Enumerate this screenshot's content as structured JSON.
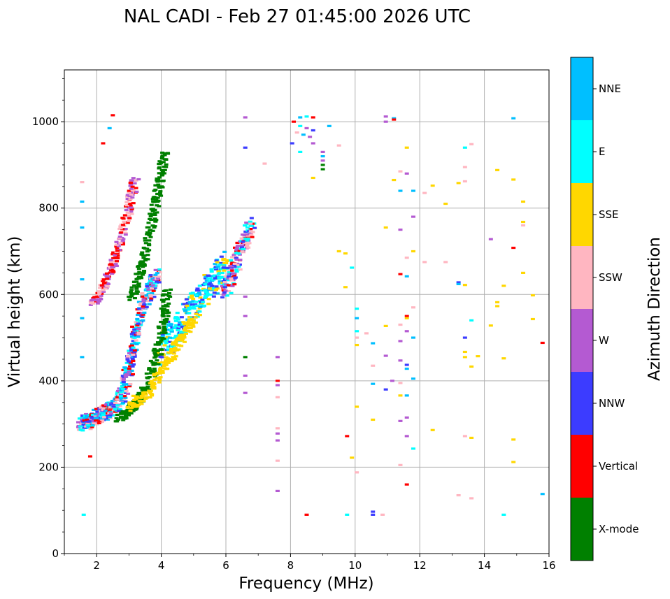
{
  "chart_data": {
    "type": "scatter",
    "title": "NAL CADI - Feb 27 01:45:00 2026 UTC",
    "xlabel": "Frequency (MHz)",
    "ylabel": "Virtual height (km)",
    "xlim": [
      1,
      16
    ],
    "ylim": [
      0,
      1120
    ],
    "xticks": [
      2,
      4,
      6,
      8,
      10,
      12,
      14,
      16
    ],
    "yticks": [
      0,
      200,
      400,
      600,
      800,
      1000
    ],
    "grid": true,
    "colorbar": {
      "label": "Azimuth Direction",
      "categories": [
        {
          "name": "X-mode",
          "color": "#008000"
        },
        {
          "name": "Vertical",
          "color": "#ff0000"
        },
        {
          "name": "NNW",
          "color": "#3c3cff"
        },
        {
          "name": "W",
          "color": "#b45ad2"
        },
        {
          "name": "SSW",
          "color": "#ffb6c1"
        },
        {
          "name": "SSE",
          "color": "#ffd700"
        },
        {
          "name": "E",
          "color": "#00ffff"
        },
        {
          "name": "NNE",
          "color": "#00bfff"
        }
      ]
    },
    "traces": [
      {
        "name": "ordinary trace (mixed azimuth)",
        "mix": [
          "E",
          "NNE",
          "NNW",
          "W",
          "Vertical",
          "SSW"
        ],
        "points": [
          [
            1.5,
            300
          ],
          [
            1.7,
            305
          ],
          [
            1.9,
            315
          ],
          [
            2.1,
            320
          ],
          [
            2.3,
            330
          ],
          [
            2.5,
            338
          ],
          [
            2.7,
            350
          ],
          [
            2.85,
            380
          ],
          [
            3.0,
            430
          ],
          [
            3.15,
            490
          ],
          [
            3.3,
            540
          ],
          [
            3.5,
            580
          ],
          [
            3.7,
            620
          ],
          [
            3.9,
            650
          ]
        ],
        "spread": 35
      },
      {
        "name": "upper cluster (E)",
        "mix": [
          "E",
          "SSE",
          "E",
          "NNE",
          "NNW"
        ],
        "points": [
          [
            4.0,
            470
          ],
          [
            4.3,
            500
          ],
          [
            4.6,
            530
          ],
          [
            4.9,
            560
          ],
          [
            5.2,
            590
          ],
          [
            5.5,
            620
          ],
          [
            5.8,
            650
          ],
          [
            6.0,
            670
          ]
        ],
        "spread": 70
      },
      {
        "name": "X-mode trace",
        "mix": [
          "X-mode"
        ],
        "points": [
          [
            2.7,
            315
          ],
          [
            3.0,
            330
          ],
          [
            3.3,
            355
          ],
          [
            3.6,
            390
          ],
          [
            3.8,
            440
          ],
          [
            4.0,
            500
          ],
          [
            4.1,
            560
          ],
          [
            4.2,
            620
          ]
        ],
        "spread": 22
      },
      {
        "name": "SSE low trace",
        "mix": [
          "SSE"
        ],
        "points": [
          [
            3.0,
            340
          ],
          [
            3.4,
            360
          ],
          [
            3.8,
            395
          ],
          [
            4.1,
            430
          ],
          [
            4.4,
            470
          ],
          [
            4.7,
            510
          ],
          [
            5.0,
            540
          ]
        ],
        "spread": 25
      },
      {
        "name": "multihop vertical",
        "mix": [
          "Vertical",
          "SSW",
          "W"
        ],
        "points": [
          [
            1.9,
            580
          ],
          [
            2.1,
            600
          ],
          [
            2.3,
            630
          ],
          [
            2.5,
            670
          ],
          [
            2.7,
            715
          ],
          [
            2.9,
            770
          ],
          [
            3.05,
            820
          ],
          [
            3.2,
            870
          ]
        ],
        "spread": 10
      },
      {
        "name": "multihop X-mode",
        "mix": [
          "X-mode"
        ],
        "points": [
          [
            3.1,
            590
          ],
          [
            3.3,
            640
          ],
          [
            3.5,
            690
          ],
          [
            3.7,
            760
          ],
          [
            3.85,
            820
          ],
          [
            4.0,
            880
          ],
          [
            4.1,
            930
          ]
        ],
        "spread": 10
      },
      {
        "name": "6-7 MHz cluster",
        "mix": [
          "W",
          "SSW",
          "Vertical",
          "NNW",
          "E"
        ],
        "points": [
          [
            6.0,
            610
          ],
          [
            6.2,
            650
          ],
          [
            6.4,
            690
          ],
          [
            6.6,
            730
          ],
          [
            6.8,
            760
          ]
        ],
        "spread": 40
      }
    ],
    "scattered": [
      {
        "f": 1.6,
        "h": 90,
        "az": "E"
      },
      {
        "f": 1.55,
        "h": 455,
        "az": "NNE"
      },
      {
        "f": 1.55,
        "h": 545,
        "az": "NNE"
      },
      {
        "f": 1.55,
        "h": 635,
        "az": "NNE"
      },
      {
        "f": 1.55,
        "h": 755,
        "az": "NNE"
      },
      {
        "f": 1.55,
        "h": 815,
        "az": "NNE"
      },
      {
        "f": 1.55,
        "h": 860,
        "az": "SSW"
      },
      {
        "f": 1.8,
        "h": 225,
        "az": "Vertical"
      },
      {
        "f": 2.2,
        "h": 950,
        "az": "Vertical"
      },
      {
        "f": 2.4,
        "h": 985,
        "az": "NNE"
      },
      {
        "f": 2.5,
        "h": 1015,
        "az": "Vertical"
      },
      {
        "f": 6.6,
        "h": 940,
        "az": "NNW"
      },
      {
        "f": 6.6,
        "h": 1010,
        "az": "W"
      },
      {
        "f": 6.6,
        "h": 595,
        "az": "W"
      },
      {
        "f": 6.6,
        "h": 550,
        "az": "W"
      },
      {
        "f": 6.6,
        "h": 455,
        "az": "X-mode"
      },
      {
        "f": 6.6,
        "h": 412,
        "az": "W"
      },
      {
        "f": 6.6,
        "h": 372,
        "az": "W"
      },
      {
        "f": 7.2,
        "h": 903,
        "az": "SSW"
      },
      {
        "f": 7.6,
        "h": 455,
        "az": "W"
      },
      {
        "f": 7.6,
        "h": 400,
        "az": "Vertical"
      },
      {
        "f": 7.6,
        "h": 390,
        "az": "W"
      },
      {
        "f": 7.6,
        "h": 362,
        "az": "SSW"
      },
      {
        "f": 7.6,
        "h": 290,
        "az": "SSW"
      },
      {
        "f": 7.6,
        "h": 278,
        "az": "W"
      },
      {
        "f": 7.6,
        "h": 262,
        "az": "W"
      },
      {
        "f": 7.6,
        "h": 215,
        "az": "SSW"
      },
      {
        "f": 7.6,
        "h": 145,
        "az": "W"
      },
      {
        "f": 8.5,
        "h": 90,
        "az": "Vertical"
      },
      {
        "f": 8.3,
        "h": 1010,
        "az": "NNE"
      },
      {
        "f": 8.5,
        "h": 1012,
        "az": "E"
      },
      {
        "f": 8.7,
        "h": 1010,
        "az": "Vertical"
      },
      {
        "f": 8.1,
        "h": 1000,
        "az": "Vertical"
      },
      {
        "f": 8.3,
        "h": 990,
        "az": "E"
      },
      {
        "f": 8.5,
        "h": 985,
        "az": "W"
      },
      {
        "f": 8.7,
        "h": 980,
        "az": "NNW"
      },
      {
        "f": 8.2,
        "h": 975,
        "az": "SSW"
      },
      {
        "f": 8.4,
        "h": 970,
        "az": "NNE"
      },
      {
        "f": 8.6,
        "h": 965,
        "az": "W"
      },
      {
        "f": 8.05,
        "h": 950,
        "az": "NNW"
      },
      {
        "f": 8.3,
        "h": 930,
        "az": "E"
      },
      {
        "f": 8.7,
        "h": 950,
        "az": "W"
      },
      {
        "f": 8.7,
        "h": 870,
        "az": "SSE"
      },
      {
        "f": 9.0,
        "h": 930,
        "az": "W"
      },
      {
        "f": 9.0,
        "h": 920,
        "az": "NNE"
      },
      {
        "f": 9.0,
        "h": 910,
        "az": "W"
      },
      {
        "f": 9.0,
        "h": 900,
        "az": "X-mode"
      },
      {
        "f": 9.0,
        "h": 890,
        "az": "X-mode"
      },
      {
        "f": 9.2,
        "h": 990,
        "az": "NNE"
      },
      {
        "f": 9.5,
        "h": 945,
        "az": "SSW"
      },
      {
        "f": 9.5,
        "h": 700,
        "az": "SSE"
      },
      {
        "f": 9.7,
        "h": 695,
        "az": "SSE"
      },
      {
        "f": 9.7,
        "h": 617,
        "az": "SSE"
      },
      {
        "f": 9.9,
        "h": 662,
        "az": "E"
      },
      {
        "f": 10.05,
        "h": 567,
        "az": "E"
      },
      {
        "f": 10.05,
        "h": 545,
        "az": "NNE"
      },
      {
        "f": 10.05,
        "h": 515,
        "az": "E"
      },
      {
        "f": 10.05,
        "h": 500,
        "az": "SSW"
      },
      {
        "f": 10.05,
        "h": 483,
        "az": "SSE"
      },
      {
        "f": 10.05,
        "h": 340,
        "az": "SSE"
      },
      {
        "f": 9.75,
        "h": 272,
        "az": "Vertical"
      },
      {
        "f": 9.9,
        "h": 222,
        "az": "SSE"
      },
      {
        "f": 10.05,
        "h": 188,
        "az": "SSW"
      },
      {
        "f": 9.75,
        "h": 90,
        "az": "E"
      },
      {
        "f": 10.55,
        "h": 90,
        "az": "NNW"
      },
      {
        "f": 10.55,
        "h": 97,
        "az": "NNW"
      },
      {
        "f": 10.85,
        "h": 90,
        "az": "SSW"
      },
      {
        "f": 10.55,
        "h": 310,
        "az": "SSE"
      },
      {
        "f": 10.55,
        "h": 393,
        "az": "NNE"
      },
      {
        "f": 10.55,
        "h": 435,
        "az": "SSW"
      },
      {
        "f": 10.55,
        "h": 487,
        "az": "NNE"
      },
      {
        "f": 10.35,
        "h": 510,
        "az": "SSW"
      },
      {
        "f": 10.95,
        "h": 1012,
        "az": "W"
      },
      {
        "f": 10.95,
        "h": 1000,
        "az": "W"
      },
      {
        "f": 11.2,
        "h": 1008,
        "az": "NNE"
      },
      {
        "f": 11.2,
        "h": 1005,
        "az": "Vertical"
      },
      {
        "f": 11.2,
        "h": 865,
        "az": "SSE"
      },
      {
        "f": 11.4,
        "h": 885,
        "az": "SSW"
      },
      {
        "f": 11.6,
        "h": 880,
        "az": "W"
      },
      {
        "f": 11.6,
        "h": 940,
        "az": "SSE"
      },
      {
        "f": 11.4,
        "h": 840,
        "az": "NNE"
      },
      {
        "f": 11.8,
        "h": 840,
        "az": "NNE"
      },
      {
        "f": 11.8,
        "h": 780,
        "az": "W"
      },
      {
        "f": 10.95,
        "h": 755,
        "az": "SSE"
      },
      {
        "f": 11.4,
        "h": 750,
        "az": "W"
      },
      {
        "f": 11.8,
        "h": 700,
        "az": "SSE"
      },
      {
        "f": 11.6,
        "h": 685,
        "az": "SSW"
      },
      {
        "f": 11.4,
        "h": 647,
        "az": "Vertical"
      },
      {
        "f": 11.6,
        "h": 642,
        "az": "NNE"
      },
      {
        "f": 11.8,
        "h": 570,
        "az": "SSW"
      },
      {
        "f": 11.6,
        "h": 550,
        "az": "Vertical"
      },
      {
        "f": 11.6,
        "h": 545,
        "az": "SSE"
      },
      {
        "f": 11.4,
        "h": 530,
        "az": "SSW"
      },
      {
        "f": 11.6,
        "h": 515,
        "az": "W"
      },
      {
        "f": 11.8,
        "h": 500,
        "az": "NNE"
      },
      {
        "f": 10.95,
        "h": 527,
        "az": "SSE"
      },
      {
        "f": 11.4,
        "h": 492,
        "az": "W"
      },
      {
        "f": 10.95,
        "h": 458,
        "az": "W"
      },
      {
        "f": 11.4,
        "h": 447,
        "az": "W"
      },
      {
        "f": 11.6,
        "h": 437,
        "az": "NNW"
      },
      {
        "f": 11.6,
        "h": 428,
        "az": "NNE"
      },
      {
        "f": 11.8,
        "h": 405,
        "az": "NNE"
      },
      {
        "f": 11.15,
        "h": 400,
        "az": "W"
      },
      {
        "f": 11.4,
        "h": 395,
        "az": "SSW"
      },
      {
        "f": 10.95,
        "h": 380,
        "az": "NNW"
      },
      {
        "f": 11.4,
        "h": 366,
        "az": "SSE"
      },
      {
        "f": 11.6,
        "h": 366,
        "az": "NNE"
      },
      {
        "f": 11.6,
        "h": 315,
        "az": "W"
      },
      {
        "f": 11.4,
        "h": 307,
        "az": "W"
      },
      {
        "f": 11.6,
        "h": 272,
        "az": "W"
      },
      {
        "f": 11.8,
        "h": 243,
        "az": "E"
      },
      {
        "f": 11.4,
        "h": 205,
        "az": "SSW"
      },
      {
        "f": 11.6,
        "h": 160,
        "az": "Vertical"
      },
      {
        "f": 12.15,
        "h": 835,
        "az": "SSW"
      },
      {
        "f": 12.4,
        "h": 852,
        "az": "SSE"
      },
      {
        "f": 12.8,
        "h": 810,
        "az": "SSE"
      },
      {
        "f": 12.15,
        "h": 675,
        "az": "SSW"
      },
      {
        "f": 12.8,
        "h": 675,
        "az": "SSW"
      },
      {
        "f": 12.4,
        "h": 286,
        "az": "SSE"
      },
      {
        "f": 13.2,
        "h": 858,
        "az": "SSE"
      },
      {
        "f": 13.4,
        "h": 895,
        "az": "SSW"
      },
      {
        "f": 13.4,
        "h": 862,
        "az": "SSW"
      },
      {
        "f": 13.4,
        "h": 940,
        "az": "E"
      },
      {
        "f": 13.6,
        "h": 948,
        "az": "SSW"
      },
      {
        "f": 13.2,
        "h": 628,
        "az": "NNW"
      },
      {
        "f": 13.2,
        "h": 624,
        "az": "NNE"
      },
      {
        "f": 13.4,
        "h": 622,
        "az": "SSE"
      },
      {
        "f": 13.6,
        "h": 540,
        "az": "E"
      },
      {
        "f": 13.4,
        "h": 500,
        "az": "NNW"
      },
      {
        "f": 13.4,
        "h": 467,
        "az": "SSE"
      },
      {
        "f": 13.4,
        "h": 455,
        "az": "SSE"
      },
      {
        "f": 13.8,
        "h": 457,
        "az": "SSE"
      },
      {
        "f": 13.6,
        "h": 433,
        "az": "SSE"
      },
      {
        "f": 13.4,
        "h": 272,
        "az": "SSW"
      },
      {
        "f": 13.6,
        "h": 268,
        "az": "SSE"
      },
      {
        "f": 13.2,
        "h": 135,
        "az": "SSW"
      },
      {
        "f": 13.6,
        "h": 128,
        "az": "SSW"
      },
      {
        "f": 14.2,
        "h": 728,
        "az": "W"
      },
      {
        "f": 14.4,
        "h": 888,
        "az": "SSE"
      },
      {
        "f": 14.4,
        "h": 582,
        "az": "SSE"
      },
      {
        "f": 14.4,
        "h": 573,
        "az": "SSE"
      },
      {
        "f": 14.2,
        "h": 528,
        "az": "SSE"
      },
      {
        "f": 14.6,
        "h": 620,
        "az": "SSE"
      },
      {
        "f": 14.6,
        "h": 452,
        "az": "SSE"
      },
      {
        "f": 14.6,
        "h": 90,
        "az": "E"
      },
      {
        "f": 14.9,
        "h": 1008,
        "az": "NNE"
      },
      {
        "f": 14.9,
        "h": 866,
        "az": "SSE"
      },
      {
        "f": 14.9,
        "h": 708,
        "az": "Vertical"
      },
      {
        "f": 15.2,
        "h": 815,
        "az": "SSE"
      },
      {
        "f": 15.2,
        "h": 768,
        "az": "SSE"
      },
      {
        "f": 15.2,
        "h": 760,
        "az": "SSW"
      },
      {
        "f": 15.2,
        "h": 650,
        "az": "SSE"
      },
      {
        "f": 15.5,
        "h": 598,
        "az": "SSE"
      },
      {
        "f": 15.5,
        "h": 543,
        "az": "SSE"
      },
      {
        "f": 15.8,
        "h": 488,
        "az": "Vertical"
      },
      {
        "f": 14.9,
        "h": 264,
        "az": "SSE"
      },
      {
        "f": 14.9,
        "h": 212,
        "az": "SSE"
      },
      {
        "f": 15.8,
        "h": 138,
        "az": "NNE"
      }
    ]
  }
}
